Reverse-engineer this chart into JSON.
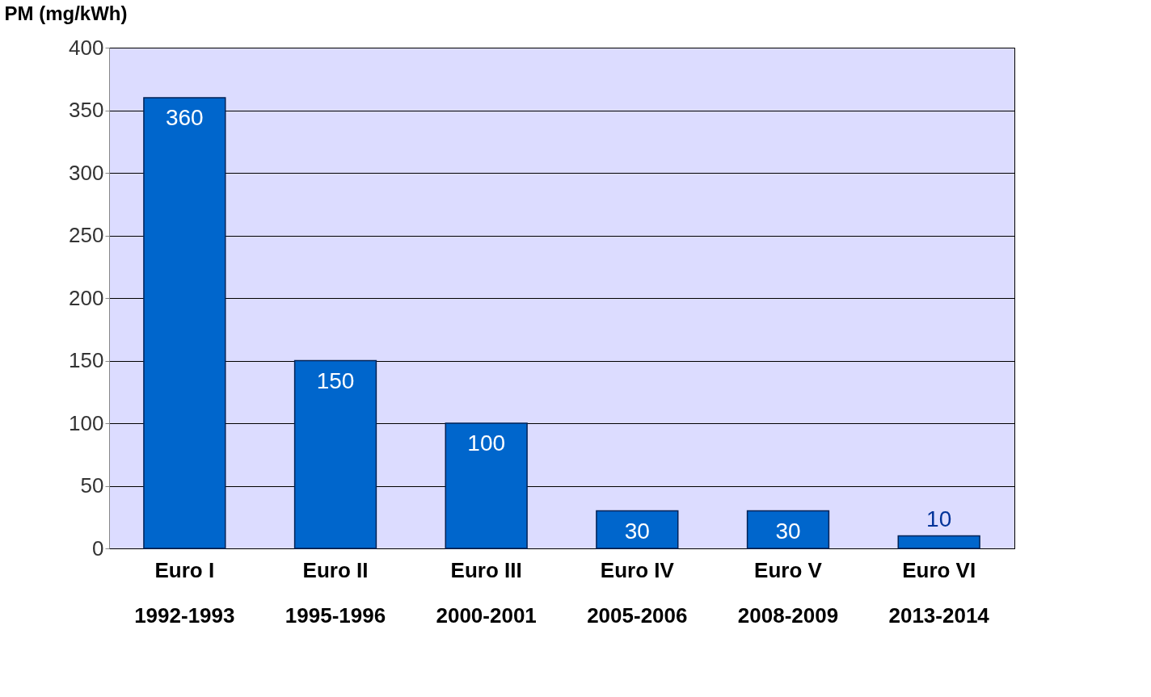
{
  "chart_data": {
    "type": "bar",
    "ylabel": "PM (mg/kWh)",
    "categories": [
      "Euro I\n1992-1993",
      "Euro II\n1995-1996",
      "Euro III\n2000-2001",
      "Euro IV\n2005-2006",
      "Euro V\n2008-2009",
      "Euro VI\n2013-2014"
    ],
    "values": [
      360,
      150,
      100,
      30,
      30,
      10
    ],
    "color": "#0066cc",
    "ylim": [
      0,
      400
    ],
    "yticks": [
      0,
      50,
      100,
      150,
      200,
      250,
      300,
      350,
      400
    ],
    "grid": "y",
    "data_labels": true
  }
}
